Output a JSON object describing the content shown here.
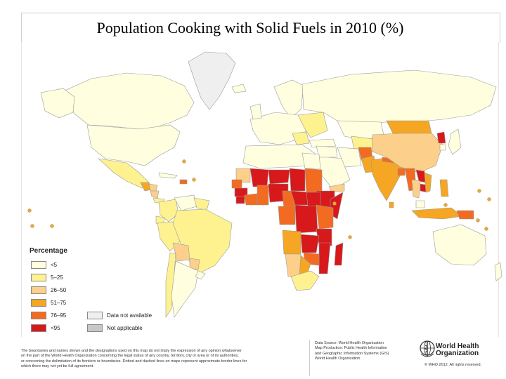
{
  "title": "Population Cooking with Solid Fuels in 2010 (%)",
  "legend": {
    "title": "Percentage",
    "items": [
      {
        "label": "<5",
        "color": "#FFFFE0"
      },
      {
        "label": "5–25",
        "color": "#FDF28F"
      },
      {
        "label": "26–50",
        "color": "#FCD08B"
      },
      {
        "label": "51–75",
        "color": "#F5A623"
      },
      {
        "label": "76–95",
        "color": "#F26B21"
      },
      {
        "label": "<95",
        "color": "#D7191C"
      },
      {
        "label": "Data not available",
        "color": "#EFEFEF"
      },
      {
        "label": "Not applicable",
        "color": "#C8C8C8"
      }
    ]
  },
  "disclaimer": {
    "line1": "The boundaries and names shown and the designations used on this map do not imply the expression of any opinion whatsoever",
    "line2": "on the part of the World Health Organization concerning the legal status of any country, territory, city or area or of its authorities,",
    "line3": "or concerning the delimitation of its frontiers or boundaries. Dotted and dashed lines on maps represent approximate border lines for",
    "line4": "which there may not yet be full agreement."
  },
  "source": {
    "line1": "Data Source: World Health Organization",
    "line2": "Map Production: Public Health Information",
    "line3": "and Geographic Information Systems (GIS)",
    "line4": "World Health Organization"
  },
  "who": {
    "name_line1": "World Health",
    "name_line2": "Organization",
    "copyright": "© WHO 2012. All rights reserved."
  },
  "colors": {
    "ocean": "#ffffff",
    "country_border": "#9a9a9a"
  }
}
